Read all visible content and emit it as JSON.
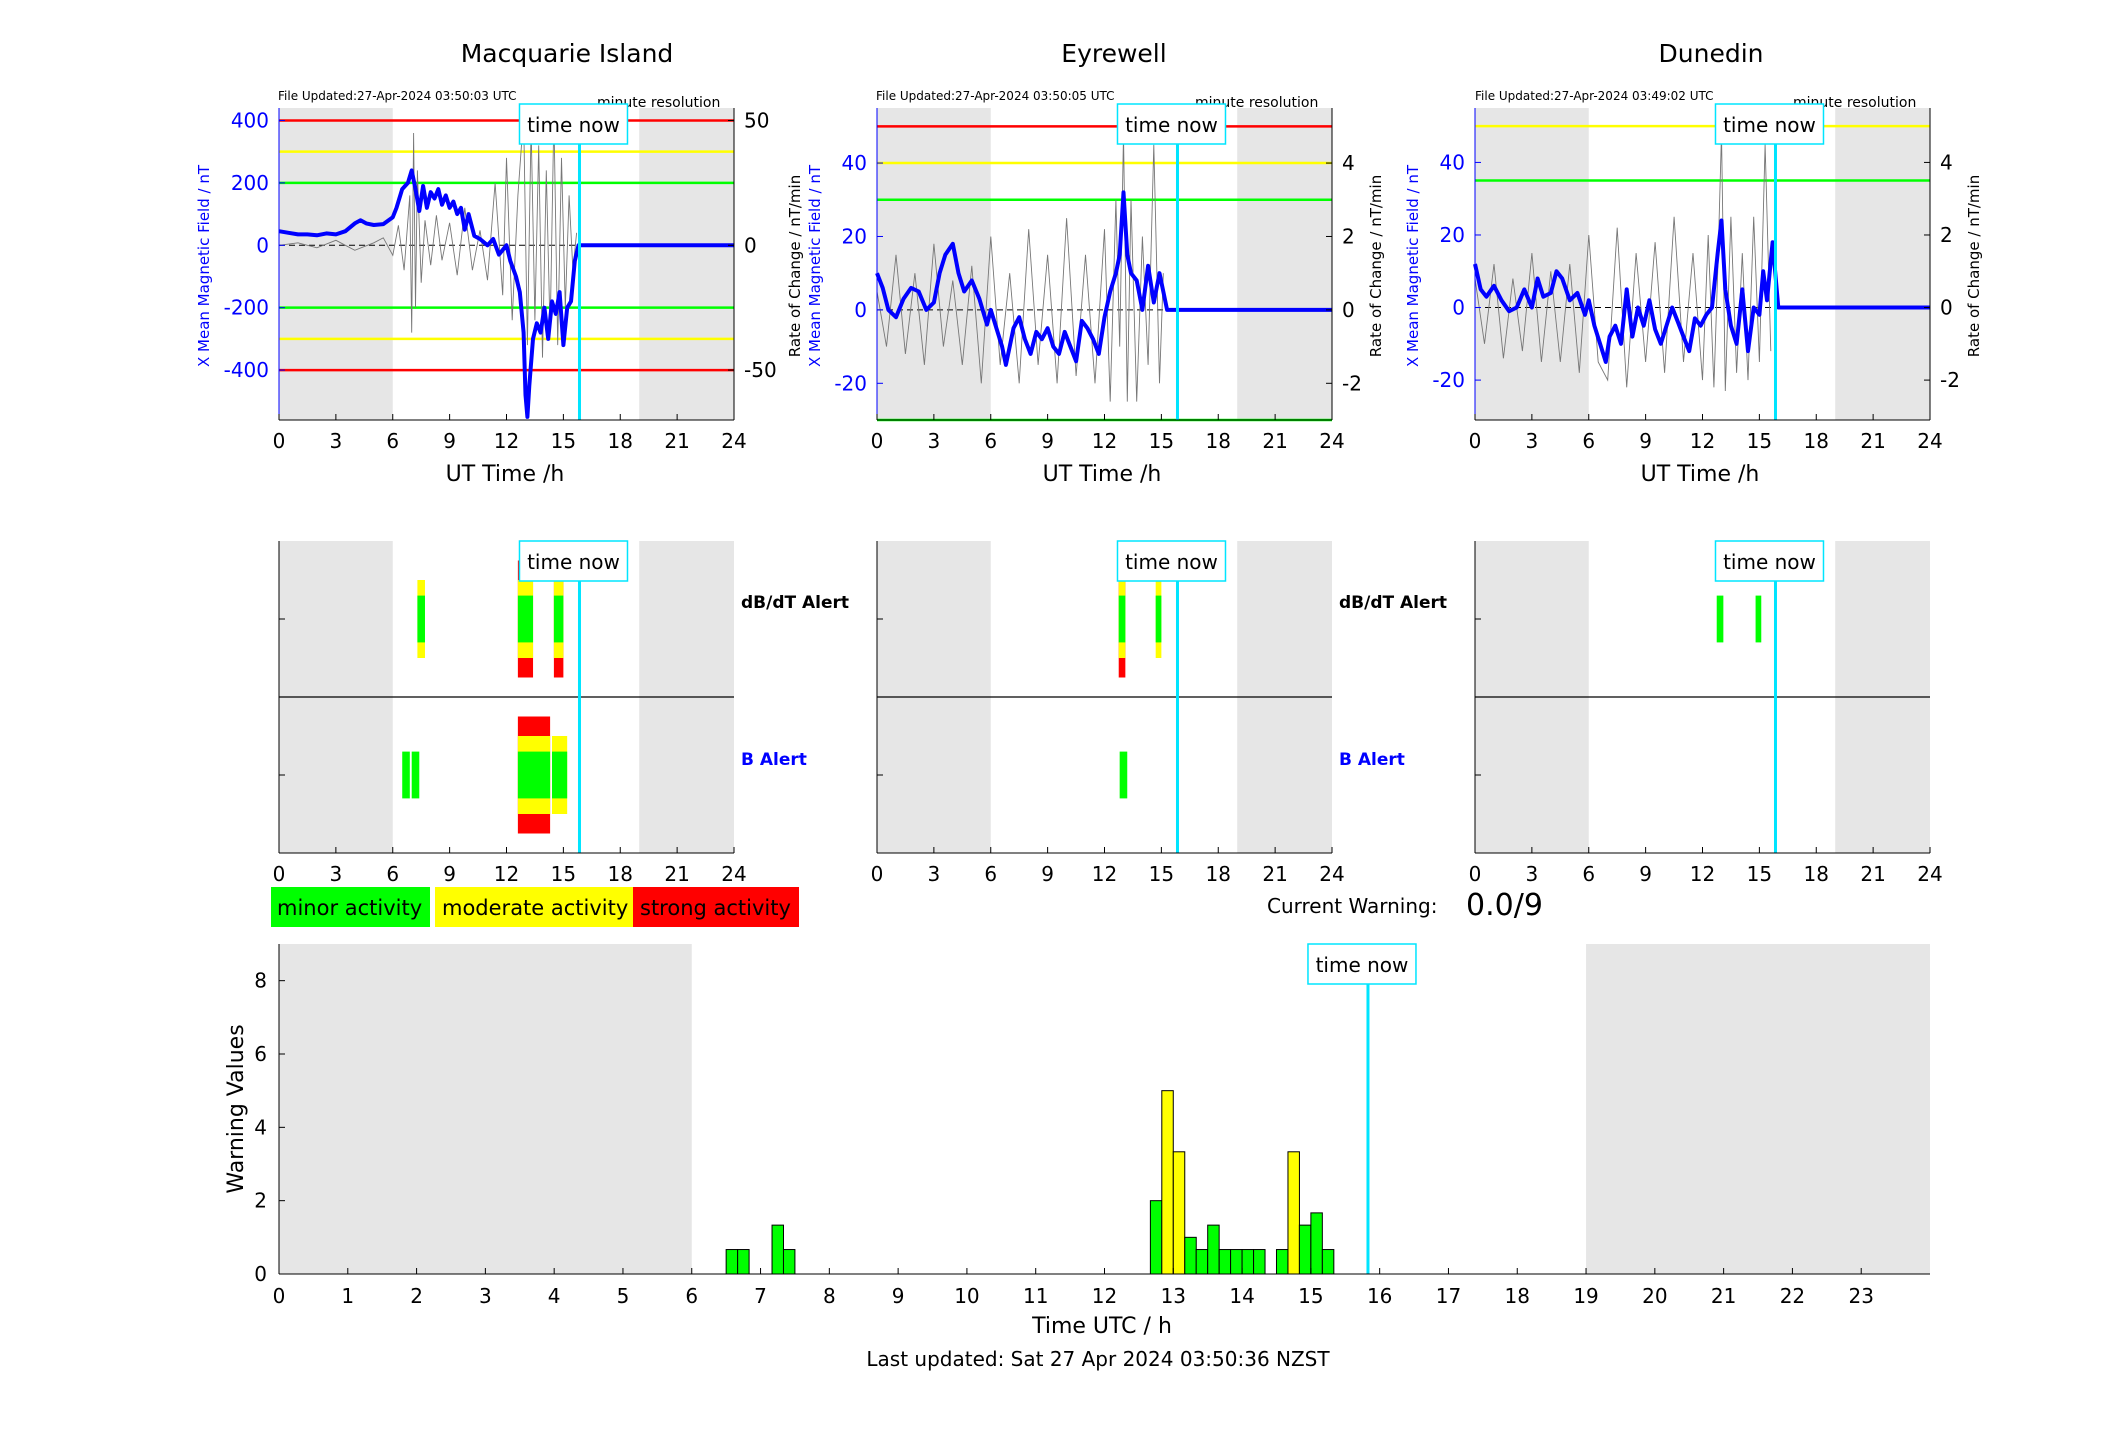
{
  "stations": [
    {
      "title": "Macquarie Island",
      "file_updated": "File Updated:27-Apr-2024 03:50:03 UTC",
      "resolution": "minute resolution"
    },
    {
      "title": "Eyrewell",
      "file_updated": "File Updated:27-Apr-2024 03:50:05 UTC",
      "resolution": "minute resolution"
    },
    {
      "title": "Dunedin",
      "file_updated": "File Updated:27-Apr-2024 03:49:02 UTC",
      "resolution": "minute resolution"
    }
  ],
  "labels": {
    "time_now": "time now",
    "x_axis_top": "UT Time /h",
    "y_left": "X Mean Magnetic Field / nT",
    "y_right": "Rate of Change / nT/min",
    "dbdt_alert": "dB/dT Alert",
    "b_alert": "B Alert",
    "current_warning_label": "Current Warning:",
    "current_warning_value": "0.0/9",
    "bottom_xlabel": "Time UTC / h",
    "bottom_ylabel": "Warning Values",
    "last_updated": "Last updated: Sat 27 Apr 2024 03:50:36 NZST"
  },
  "legend": [
    {
      "label": "minor activity",
      "color": "#00ff00"
    },
    {
      "label": "moderate activity",
      "color": "#ffff00"
    },
    {
      "label": "strong activity",
      "color": "#ff0000"
    }
  ],
  "colors": {
    "field_line": "#0000ff",
    "time_now": "#00e5ff",
    "night_shade": "#e6e6e6"
  },
  "chart_data": [
    {
      "type": "line",
      "station": "Macquarie Island",
      "xlim": [
        0,
        24
      ],
      "xticks": [
        0,
        3,
        6,
        9,
        12,
        15,
        18,
        21,
        24
      ],
      "ylim": [
        -560,
        440
      ],
      "yticks": [
        -400,
        -200,
        0,
        200,
        400
      ],
      "y2lim": [
        -70,
        55
      ],
      "y2ticks": [
        -50,
        0,
        50
      ],
      "night_bands": [
        [
          0,
          6
        ],
        [
          19,
          24
        ]
      ],
      "time_now": 15.85,
      "thresholds": [
        {
          "y": 400,
          "color": "#ff0000"
        },
        {
          "y": 300,
          "color": "#ffff00"
        },
        {
          "y": 200,
          "color": "#00ff00"
        },
        {
          "y": -200,
          "color": "#00ff00"
        },
        {
          "y": -300,
          "color": "#ffff00"
        },
        {
          "y": -400,
          "color": "#ff0000"
        }
      ],
      "field_series": {
        "x": [
          0,
          0.5,
          1,
          1.5,
          2,
          2.5,
          3,
          3.5,
          4,
          4.3,
          4.6,
          5,
          5.5,
          6,
          6.2,
          6.5,
          6.8,
          7,
          7.2,
          7.4,
          7.6,
          7.8,
          8,
          8.2,
          8.4,
          8.6,
          8.8,
          9,
          9.2,
          9.4,
          9.6,
          9.8,
          10,
          10.3,
          10.6,
          11,
          11.3,
          11.6,
          12,
          12.2,
          12.5,
          12.7,
          12.9,
          13,
          13.1,
          13.2,
          13.4,
          13.6,
          13.8,
          14,
          14.2,
          14.4,
          14.6,
          14.8,
          15,
          15.2,
          15.4,
          15.6,
          15.8,
          16,
          17,
          18,
          19,
          20,
          21,
          22,
          23,
          24
        ],
        "y": [
          45,
          40,
          35,
          35,
          32,
          38,
          35,
          45,
          70,
          80,
          70,
          65,
          68,
          90,
          120,
          180,
          200,
          240,
          180,
          110,
          190,
          120,
          170,
          150,
          180,
          130,
          160,
          120,
          140,
          100,
          120,
          50,
          100,
          30,
          20,
          0,
          20,
          -30,
          0,
          -50,
          -100,
          -150,
          -280,
          -480,
          -550,
          -450,
          -300,
          -250,
          -280,
          -200,
          -300,
          -180,
          -220,
          -150,
          -320,
          -200,
          -180,
          -50,
          0,
          0,
          0,
          0,
          0,
          0,
          0,
          0,
          0,
          0
        ]
      },
      "rate_series": {
        "x": [
          0,
          1,
          2,
          3,
          4,
          5,
          5.5,
          6,
          6.3,
          6.6,
          6.9,
          7,
          7.1,
          7.2,
          7.3,
          7.5,
          7.7,
          8,
          8.3,
          8.6,
          9,
          9.4,
          9.8,
          10.2,
          10.6,
          11,
          11.4,
          11.8,
          12,
          12.3,
          12.6,
          12.9,
          13.1,
          13.3,
          13.5,
          13.7,
          13.9,
          14.1,
          14.3,
          14.5,
          14.7,
          14.9,
          15.1,
          15.3,
          15.5,
          15.7
        ],
        "y": [
          0,
          1,
          -1,
          2,
          -2,
          1,
          3,
          -4,
          8,
          -10,
          20,
          -35,
          45,
          -25,
          30,
          -15,
          10,
          -8,
          12,
          -6,
          9,
          -12,
          15,
          -10,
          6,
          -14,
          25,
          -20,
          35,
          -30,
          20,
          52,
          -40,
          48,
          -30,
          40,
          -45,
          30,
          -35,
          52,
          -40,
          35,
          -25,
          20,
          -10,
          5
        ]
      },
      "dbdt_bars": [
        {
          "x0": 7.3,
          "x1": 7.7,
          "min": 0.3,
          "mod": 0.5,
          "strong": 0
        },
        {
          "x0": 12.6,
          "x1": 13.4,
          "min": 0.3,
          "mod": 0.5,
          "strong": 0.75
        },
        {
          "x0": 14.5,
          "x1": 15.0,
          "min": 0.3,
          "mod": 0.5,
          "strong": 0.75
        }
      ],
      "b_bars": [
        {
          "x0": 6.5,
          "x1": 6.9,
          "min": 0.3,
          "mod": 0,
          "strong": 0
        },
        {
          "x0": 7.0,
          "x1": 7.4,
          "min": 0.3,
          "mod": 0,
          "strong": 0
        },
        {
          "x0": 12.6,
          "x1": 14.3,
          "min": 0.3,
          "mod": 0.5,
          "strong": 0.75
        },
        {
          "x0": 14.4,
          "x1": 15.2,
          "min": 0.3,
          "mod": 0.5,
          "strong": 0
        }
      ]
    },
    {
      "type": "line",
      "station": "Eyrewell",
      "xlim": [
        0,
        24
      ],
      "xticks": [
        0,
        3,
        6,
        9,
        12,
        15,
        18,
        21,
        24
      ],
      "ylim": [
        -30,
        55
      ],
      "yticks": [
        -20,
        0,
        20,
        40
      ],
      "y2lim": [
        -3,
        5.5
      ],
      "y2ticks": [
        -2,
        0,
        2,
        4
      ],
      "night_bands": [
        [
          0,
          6
        ],
        [
          19,
          24
        ]
      ],
      "time_now": 15.85,
      "thresholds": [
        {
          "y": 50,
          "color": "#ff0000"
        },
        {
          "y": 40,
          "color": "#ffff00"
        },
        {
          "y": 30,
          "color": "#00ff00"
        },
        {
          "y": -30,
          "color": "#00ff00"
        }
      ],
      "field_series": {
        "x": [
          0,
          0.3,
          0.6,
          1,
          1.4,
          1.8,
          2.2,
          2.6,
          3,
          3.3,
          3.6,
          4,
          4.3,
          4.6,
          5,
          5.4,
          5.8,
          6,
          6.3,
          6.6,
          6.8,
          7,
          7.2,
          7.5,
          7.8,
          8.1,
          8.4,
          8.7,
          9,
          9.3,
          9.6,
          9.9,
          10.2,
          10.5,
          10.8,
          11.1,
          11.4,
          11.7,
          12,
          12.3,
          12.6,
          12.8,
          13,
          13.2,
          13.4,
          13.7,
          14,
          14.3,
          14.6,
          14.9,
          15.1,
          15.3,
          16,
          17,
          18,
          19,
          20,
          21,
          22,
          23,
          24
        ],
        "y": [
          10,
          6,
          0,
          -2,
          3,
          6,
          5,
          0,
          2,
          10,
          15,
          18,
          10,
          5,
          8,
          3,
          -4,
          0,
          -5,
          -10,
          -15,
          -10,
          -5,
          -2,
          -8,
          -12,
          -6,
          -8,
          -5,
          -10,
          -12,
          -6,
          -10,
          -14,
          -3,
          -5,
          -8,
          -12,
          -2,
          5,
          10,
          15,
          32,
          15,
          10,
          8,
          0,
          12,
          2,
          10,
          5,
          0,
          0,
          0,
          0,
          0,
          0,
          0,
          0,
          0,
          0
        ]
      },
      "rate_series": {
        "x": [
          0,
          0.5,
          1,
          1.5,
          2,
          2.5,
          3,
          3.5,
          4,
          4.5,
          5,
          5.5,
          6,
          6.5,
          7,
          7.5,
          8,
          8.5,
          9,
          9.5,
          10,
          10.5,
          11,
          11.5,
          12,
          12.3,
          12.6,
          12.8,
          13,
          13.2,
          13.4,
          13.7,
          14,
          14.3,
          14.6,
          14.9,
          15.1
        ],
        "y": [
          0.5,
          -1,
          1.5,
          -1.2,
          1,
          -1.5,
          1.8,
          -1,
          0.8,
          -1.5,
          1.2,
          -2,
          2,
          -1.5,
          1,
          -2,
          2.2,
          -1.5,
          1.5,
          -2,
          2.5,
          -1.8,
          1.5,
          -2,
          2.2,
          -2.5,
          3,
          -1,
          4.8,
          -2.5,
          3,
          -2.5,
          2,
          -1.5,
          4.5,
          -2,
          1
        ]
      },
      "dbdt_bars": [
        {
          "x0": 12.75,
          "x1": 13.1,
          "min": 0.3,
          "mod": 0.5,
          "strong": 0.75
        },
        {
          "x0": 14.7,
          "x1": 15.0,
          "min": 0.3,
          "mod": 0.5,
          "strong": 0
        }
      ],
      "b_bars": [
        {
          "x0": 12.8,
          "x1": 13.2,
          "min": 0.3,
          "mod": 0,
          "strong": 0
        }
      ]
    },
    {
      "type": "line",
      "station": "Dunedin",
      "xlim": [
        0,
        24
      ],
      "xticks": [
        0,
        3,
        6,
        9,
        12,
        15,
        18,
        21,
        24
      ],
      "ylim": [
        -31,
        55
      ],
      "yticks": [
        -20,
        0,
        20,
        40
      ],
      "y2lim": [
        -3.1,
        5.5
      ],
      "y2ticks": [
        -2,
        0,
        2,
        4
      ],
      "night_bands": [
        [
          0,
          6
        ],
        [
          19,
          24
        ]
      ],
      "time_now": 15.85,
      "thresholds": [
        {
          "y": 50,
          "color": "#ffff00"
        },
        {
          "y": 35,
          "color": "#00ff00"
        }
      ],
      "field_series": {
        "x": [
          0,
          0.3,
          0.6,
          1,
          1.4,
          1.8,
          2.2,
          2.6,
          3,
          3.3,
          3.6,
          4,
          4.3,
          4.6,
          5,
          5.4,
          5.8,
          6,
          6.3,
          6.6,
          6.9,
          7.1,
          7.4,
          7.7,
          8,
          8.3,
          8.6,
          8.9,
          9.2,
          9.5,
          9.8,
          10.1,
          10.4,
          10.7,
          11,
          11.3,
          11.6,
          11.9,
          12.2,
          12.5,
          12.8,
          13,
          13.2,
          13.5,
          13.8,
          14.1,
          14.4,
          14.7,
          15,
          15.2,
          15.4,
          15.7,
          16,
          17,
          18,
          19,
          20,
          21,
          22,
          23,
          24
        ],
        "y": [
          12,
          5,
          3,
          6,
          2,
          -1,
          0,
          5,
          0,
          8,
          3,
          4,
          10,
          8,
          2,
          4,
          -2,
          2,
          -5,
          -10,
          -15,
          -8,
          -5,
          -10,
          5,
          -8,
          0,
          -5,
          2,
          -6,
          -10,
          -5,
          0,
          -4,
          -8,
          -12,
          -3,
          -5,
          -2,
          0,
          15,
          24,
          5,
          -5,
          -10,
          5,
          -12,
          0,
          -2,
          10,
          2,
          18,
          0,
          0,
          0,
          0,
          0,
          0,
          0,
          0,
          0
        ]
      },
      "rate_series": {
        "x": [
          0,
          0.5,
          1,
          1.5,
          2,
          2.5,
          3,
          3.5,
          4,
          4.5,
          5,
          5.5,
          6,
          6.5,
          7,
          7.5,
          8,
          8.5,
          9,
          9.5,
          10,
          10.5,
          11,
          11.5,
          12,
          12.3,
          12.6,
          12.8,
          13,
          13.2,
          13.5,
          13.8,
          14.1,
          14.4,
          14.7,
          15,
          15.3,
          15.6
        ],
        "y": [
          0.8,
          -1,
          1.2,
          -1.4,
          0.8,
          -1.2,
          1.5,
          -1.5,
          1,
          -1.5,
          1.2,
          -1.8,
          2,
          -1.5,
          -2,
          2.2,
          -2.2,
          1.5,
          -1.5,
          1.8,
          -1.8,
          2.5,
          -1.5,
          1.5,
          -2,
          2,
          -2.2,
          1,
          4.8,
          -2.3,
          2.5,
          -1.8,
          1.5,
          -2,
          2.5,
          -1.5,
          4.5,
          -1.2
        ]
      },
      "dbdt_bars": [
        {
          "x0": 12.75,
          "x1": 13.1,
          "min": 0.3,
          "mod": 0,
          "strong": 0
        },
        {
          "x0": 14.8,
          "x1": 15.1,
          "min": 0.3,
          "mod": 0,
          "strong": 0
        }
      ],
      "b_bars": []
    },
    {
      "type": "bar",
      "title": "",
      "xlabel": "Time UTC / h",
      "ylabel": "Warning Values",
      "xlim": [
        0,
        24
      ],
      "ylim": [
        0,
        9
      ],
      "xticks": [
        0,
        1,
        2,
        3,
        4,
        5,
        6,
        7,
        8,
        9,
        10,
        11,
        12,
        13,
        14,
        15,
        16,
        17,
        18,
        19,
        20,
        21,
        22,
        23
      ],
      "yticks": [
        0,
        2,
        4,
        6,
        8
      ],
      "night_bands": [
        [
          0,
          6
        ],
        [
          19,
          24
        ]
      ],
      "time_now": 15.83,
      "bin_width": 0.1667,
      "bars": [
        {
          "x": 6.5,
          "value": 0.667,
          "level": "minor"
        },
        {
          "x": 6.667,
          "value": 0.667,
          "level": "minor"
        },
        {
          "x": 7.167,
          "value": 1.333,
          "level": "minor"
        },
        {
          "x": 7.333,
          "value": 0.667,
          "level": "minor"
        },
        {
          "x": 12.667,
          "value": 2.0,
          "level": "minor"
        },
        {
          "x": 12.833,
          "value": 5.0,
          "level": "moderate"
        },
        {
          "x": 13.0,
          "value": 3.333,
          "level": "moderate"
        },
        {
          "x": 13.167,
          "value": 1.0,
          "level": "minor"
        },
        {
          "x": 13.333,
          "value": 0.667,
          "level": "minor"
        },
        {
          "x": 13.5,
          "value": 1.333,
          "level": "minor"
        },
        {
          "x": 13.667,
          "value": 0.667,
          "level": "minor"
        },
        {
          "x": 13.833,
          "value": 0.667,
          "level": "minor"
        },
        {
          "x": 14.0,
          "value": 0.667,
          "level": "minor"
        },
        {
          "x": 14.167,
          "value": 0.667,
          "level": "minor"
        },
        {
          "x": 14.5,
          "value": 0.667,
          "level": "minor"
        },
        {
          "x": 14.667,
          "value": 3.333,
          "level": "moderate"
        },
        {
          "x": 14.833,
          "value": 1.333,
          "level": "minor"
        },
        {
          "x": 15.0,
          "value": 1.667,
          "level": "minor"
        },
        {
          "x": 15.167,
          "value": 0.667,
          "level": "minor"
        }
      ]
    }
  ]
}
